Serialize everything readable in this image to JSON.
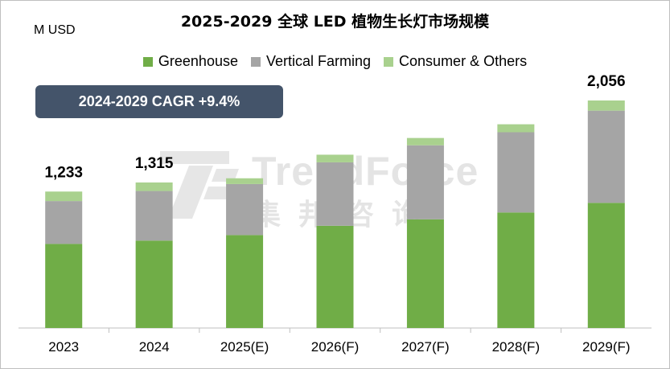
{
  "title": "2025-2029 全球 LED 植物生长灯市场规模",
  "unit_label": "M USD",
  "cagr_label": "2024-2029 CAGR +9.4%",
  "watermark": {
    "latin": "TrendForce",
    "cjk": "集邦咨询"
  },
  "colors": {
    "greenhouse": "#70ad47",
    "vertical_farming": "#a5a5a5",
    "consumer_others": "#a9d18e",
    "cagr_box": "#44546a"
  },
  "chart_data": {
    "type": "bar",
    "stacked": true,
    "title": "2025-2029 全球 LED 植物生长灯市场规模",
    "ylabel": "M USD",
    "categories": [
      "2023",
      "2024",
      "2025(E)",
      "2026(F)",
      "2027(F)",
      "2028(F)",
      "2029(F)"
    ],
    "series": [
      {
        "name": "Greenhouse",
        "color": "#70ad47",
        "values": [
          760,
          790,
          840,
          924,
          982,
          1044,
          1131
        ]
      },
      {
        "name": "Vertical Farming",
        "color": "#a5a5a5",
        "values": [
          387,
          448,
          461,
          573,
          669,
          725,
          833
        ]
      },
      {
        "name": "Consumer & Others",
        "color": "#a9d18e",
        "values": [
          86,
          77,
          52,
          69,
          66,
          72,
          92
        ]
      }
    ],
    "totals_labels": [
      "1,233",
      "1,315",
      "",
      "",
      "",
      "",
      "2,056"
    ],
    "ylim": [
      0,
      2200
    ],
    "legend_position": "top-center",
    "grid": false
  }
}
